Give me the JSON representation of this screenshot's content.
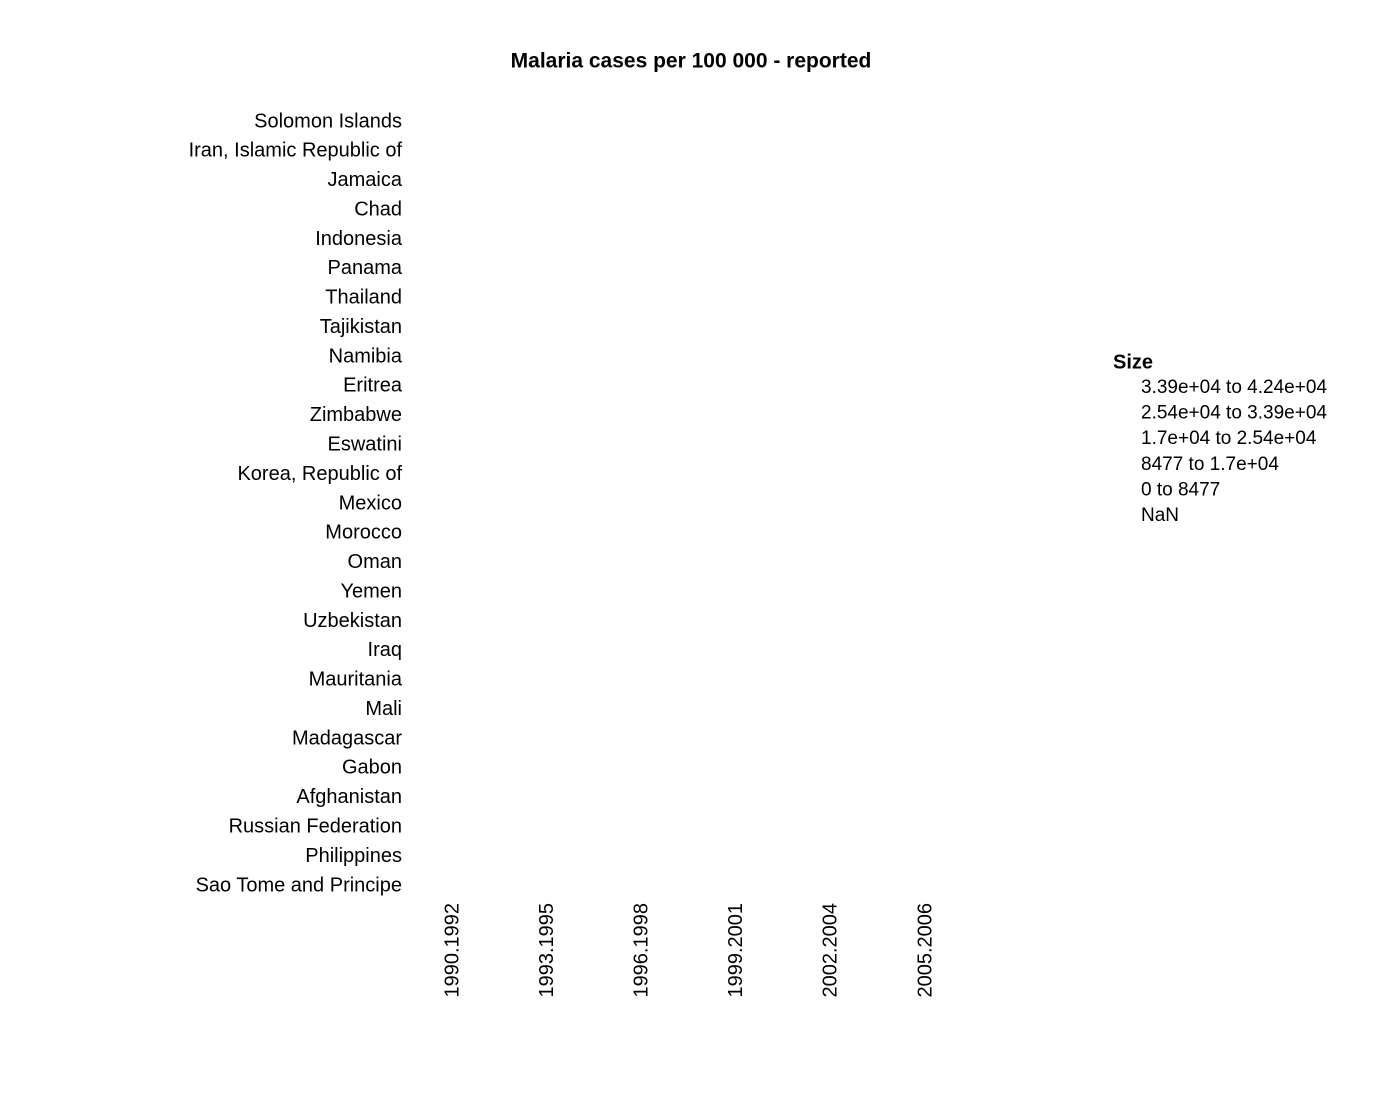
{
  "chart_data": {
    "type": "bubble",
    "title": "Malaria cases per 100 000 - reported",
    "categories": [
      "1990.1992",
      "1993.1995",
      "1996.1998",
      "1999.2001",
      "2002.2004",
      "2005.2006"
    ],
    "y_categories": [
      "Solomon Islands",
      "Iran, Islamic Republic of",
      "Jamaica",
      "Chad",
      "Indonesia",
      "Panama",
      "Thailand",
      "Tajikistan",
      "Namibia",
      "Eritrea",
      "Zimbabwe",
      "Eswatini",
      "Korea, Republic of",
      "Mexico",
      "Morocco",
      "Oman",
      "Yemen",
      "Uzbekistan",
      "Iraq",
      "Mauritania",
      "Mali",
      "Madagascar",
      "Gabon",
      "Afghanistan",
      "Russian Federation",
      "Philippines",
      "Sao Tome and Principe"
    ],
    "legend": {
      "title": "Size",
      "entries": [
        "3.39e+04 to 4.24e+04",
        "2.54e+04 to 3.39e+04",
        "1.7e+04 to 2.54e+04",
        "8477 to 1.7e+04",
        "0 to 8477",
        "NaN"
      ]
    }
  }
}
